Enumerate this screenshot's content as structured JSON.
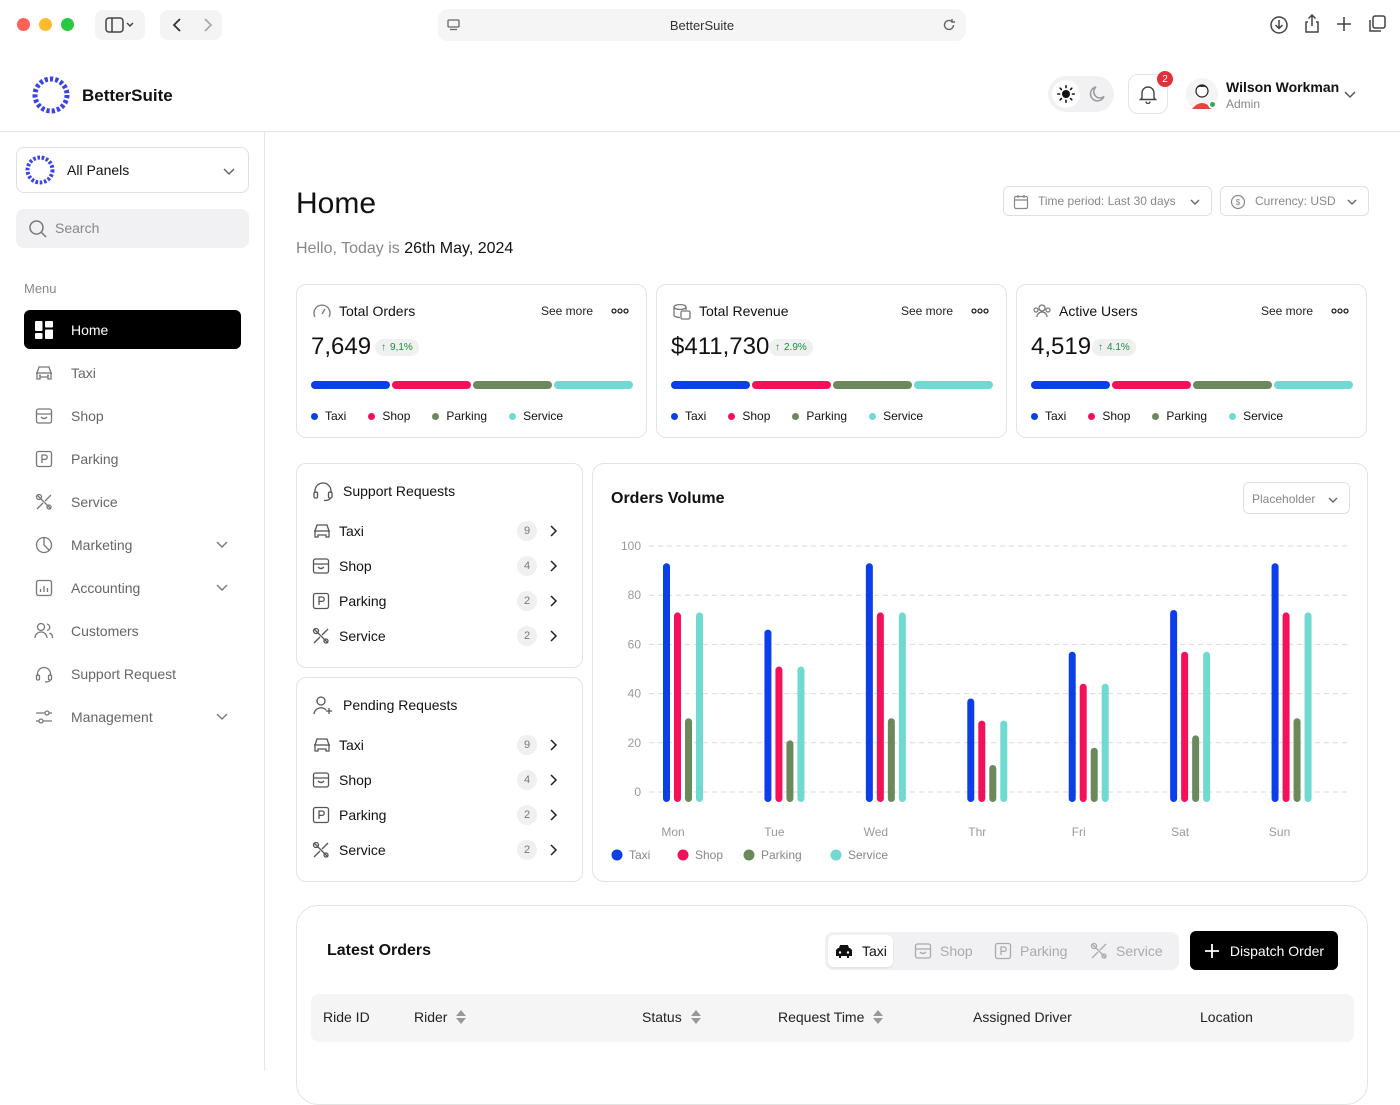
{
  "browser": {
    "url_title": "BetterSuite"
  },
  "header": {
    "brand": "BetterSuite",
    "notification_count": "2",
    "user": {
      "name": "Wilson Workman",
      "role": "Admin"
    }
  },
  "sidebar": {
    "panel_select": "All Panels",
    "search_placeholder": "Search",
    "menu_title": "Menu",
    "items": [
      {
        "label": "Home",
        "icon": "grid-icon",
        "active": true
      },
      {
        "label": "Taxi",
        "icon": "car-icon"
      },
      {
        "label": "Shop",
        "icon": "store-icon"
      },
      {
        "label": "Parking",
        "icon": "parking-icon"
      },
      {
        "label": "Service",
        "icon": "tools-icon"
      },
      {
        "label": "Marketing",
        "icon": "pie-icon",
        "expandable": true
      },
      {
        "label": "Accounting",
        "icon": "report-icon",
        "expandable": true
      },
      {
        "label": "Customers",
        "icon": "users-icon"
      },
      {
        "label": "Support Request",
        "icon": "headset-icon"
      },
      {
        "label": "Management",
        "icon": "sliders-icon",
        "expandable": true
      }
    ]
  },
  "main": {
    "title": "Home",
    "greeting_prefix": "Hello, Today is",
    "greeting_date": "26th May, 2024",
    "filters": {
      "time_period": "Time period: Last 30 days",
      "currency": "Currency: USD"
    }
  },
  "stats": [
    {
      "title": "Total Orders",
      "value": "7,649",
      "change": "9,1%",
      "see_more": "See more"
    },
    {
      "title": "Total Revenue",
      "value": "$411,730",
      "change": "2.9%",
      "see_more": "See more"
    },
    {
      "title": "Active Users",
      "value": "4,519",
      "change": "4.1%",
      "see_more": "See more"
    }
  ],
  "legend_labels": [
    "Taxi",
    "Shop",
    "Parking",
    "Service"
  ],
  "colors": {
    "taxi": "#0b3fe8",
    "shop": "#f5115a",
    "parking": "#6b8a5c",
    "service": "#6fd9d2"
  },
  "support_requests": {
    "title": "Support Requests",
    "rows": [
      {
        "label": "Taxi",
        "count": "9"
      },
      {
        "label": "Shop",
        "count": "4"
      },
      {
        "label": "Parking",
        "count": "2"
      },
      {
        "label": "Service",
        "count": "2"
      }
    ]
  },
  "pending_requests": {
    "title": "Pending Requests",
    "rows": [
      {
        "label": "Taxi",
        "count": "9"
      },
      {
        "label": "Shop",
        "count": "4"
      },
      {
        "label": "Parking",
        "count": "2"
      },
      {
        "label": "Service",
        "count": "2"
      }
    ]
  },
  "orders_volume": {
    "title": "Orders Volume",
    "select": "Placeholder"
  },
  "chart_data": {
    "type": "bar",
    "categories": [
      "Mon",
      "Tue",
      "Wed",
      "Thr",
      "Fri",
      "Sat",
      "Sun"
    ],
    "series": [
      {
        "name": "Taxi",
        "values": [
          93,
          66,
          93,
          38,
          57,
          74,
          93
        ]
      },
      {
        "name": "Shop",
        "values": [
          73,
          51,
          73,
          29,
          44,
          57,
          73
        ]
      },
      {
        "name": "Parking",
        "values": [
          30,
          21,
          30,
          11,
          18,
          23,
          30
        ]
      },
      {
        "name": "Service",
        "values": [
          73,
          51,
          73,
          29,
          44,
          57,
          73
        ]
      }
    ],
    "ylim": [
      0,
      100
    ],
    "yticks": [
      100,
      80,
      60,
      40,
      20,
      0
    ],
    "grid": true,
    "legend": "bottom-left"
  },
  "latest_orders": {
    "title": "Latest Orders",
    "tabs": [
      "Taxi",
      "Shop",
      "Parking",
      "Service"
    ],
    "dispatch_label": "Dispatch Order",
    "columns": [
      "Ride ID",
      "Rider",
      "Status",
      "Request Time",
      "Assigned Driver",
      "Location"
    ]
  }
}
